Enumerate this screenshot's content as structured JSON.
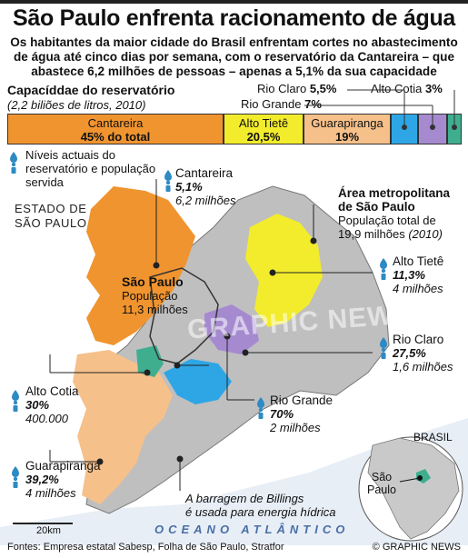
{
  "title": "São Paulo enfrenta racionamento de água",
  "subtitle_lines": [
    "Os habitantes da maior cidade do Brasil enfrentam cortes no abastecimento",
    "de água até cinco dias por semana, com o reservatório da Cantareira  – que",
    "abastece 6,2 milhões de pessoas – apenas a 5,1% da sua capacidade"
  ],
  "capacity": {
    "title": "Capacíddae do reservatório",
    "subtitle": "(2,2 biliões de litros, 2010)",
    "segments": [
      {
        "name": "Cantareira",
        "value": "45% do total",
        "color": "#f0942f"
      },
      {
        "name": "Alto Tietê",
        "value": "20,5%",
        "color": "#f2ec2c"
      },
      {
        "name": "Guarapiranga",
        "value": "19%",
        "color": "#f6c08a"
      },
      {
        "name": "Rio Claro",
        "value": "5,5%",
        "color": "#2ea6e6"
      },
      {
        "name": "Rio Grande",
        "value": "7%",
        "color": "#a58ad0"
      },
      {
        "name": "Alto Cotia",
        "value": "3%",
        "color": "#3fae8f"
      }
    ],
    "side_labels": {
      "rio_claro": {
        "name": "Rio Claro",
        "value": "5,5%"
      },
      "alto_cotia": {
        "name": "Alto Cotia",
        "value": "3%"
      },
      "rio_grande": {
        "name": "Rio Grande",
        "value": "7%"
      }
    }
  },
  "legend": "Níveis actuais do reservatório e população servida",
  "estado": [
    "ESTADO DE",
    "SÃO PAULO"
  ],
  "metro": {
    "heading": [
      "Área metropolitana",
      "de São Paulo"
    ],
    "pop_label": "População total de",
    "pop_value": "19,9 milhões",
    "pop_year": "(2010)"
  },
  "city": {
    "name": "São Paulo",
    "pop_label": "População",
    "pop_value": "11,3 milhões"
  },
  "reservoirs": [
    {
      "id": "cantareira",
      "name": "Cantareira",
      "level": "5,1%",
      "pop": "6,2 milhões"
    },
    {
      "id": "alto_tiete",
      "name": "Alto Tietê",
      "level": "11,3%",
      "pop": "4 milhões"
    },
    {
      "id": "rio_claro",
      "name": "Rio Claro",
      "level": "27,5%",
      "pop": "1,6 milhões"
    },
    {
      "id": "rio_grande",
      "name": "Rio Grande",
      "level": "70%",
      "pop": "2 milhões"
    },
    {
      "id": "alto_cotia",
      "name": "Alto Cotia",
      "level": "30%",
      "pop": "400.000"
    },
    {
      "id": "guarapiranga",
      "name": "Guarapiranga",
      "level": "39,2%",
      "pop": "4 milhões"
    }
  ],
  "billings": [
    "A barragem de Billings",
    "é usada para energia hídrica"
  ],
  "ocean": "OCEANO ATLÂNTICO",
  "scale": "20km",
  "inset": {
    "country": "BRASIL",
    "city": [
      "São",
      "Paulo"
    ]
  },
  "watermark": "GRAPHIC NEWS",
  "footer": "Fontes: Empresa estatal Sabesp, Folha de São Paulo, Stratfor",
  "copyright": "© GRAPHIC NEWS",
  "colors": {
    "cantareira": "#f0942f",
    "alto_tiete": "#f2ec2c",
    "guarapiranga": "#f6c08a",
    "rio_claro": "#2ea6e6",
    "rio_grande": "#a58ad0",
    "alto_cotia": "#3fae8f",
    "land": "#c9c9c9",
    "drop": "#2e8ac4"
  }
}
